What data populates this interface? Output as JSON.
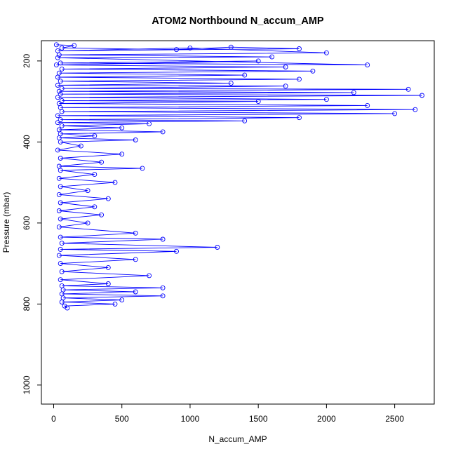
{
  "chart_data": {
    "type": "scatter",
    "title": "ATOM2 Northbound N_accum_AMP",
    "xlabel": "N_accum_AMP",
    "ylabel": "Pressure (mbar)",
    "xlim": [
      -90,
      2790
    ],
    "ylim": [
      1047,
      150
    ],
    "y_inverted": true,
    "x_ticks": [
      0,
      500,
      1000,
      1500,
      2000,
      2500
    ],
    "y_ticks": [
      200,
      400,
      600,
      800,
      1000
    ],
    "grid": false,
    "legend": "none",
    "marker": "open-circle",
    "connected_by_lines": true,
    "color": "#0000ff",
    "series": [
      {
        "points": [
          [
            20,
            160
          ],
          [
            150,
            162
          ],
          [
            60,
            168
          ],
          [
            900,
            172
          ],
          [
            1300,
            166
          ],
          [
            1800,
            170
          ],
          [
            30,
            175
          ],
          [
            1000,
            168
          ],
          [
            2000,
            180
          ],
          [
            40,
            185
          ],
          [
            1600,
            190
          ],
          [
            30,
            192
          ],
          [
            2300,
            210
          ],
          [
            50,
            205
          ],
          [
            1500,
            200
          ],
          [
            20,
            210
          ],
          [
            1700,
            215
          ],
          [
            60,
            220
          ],
          [
            1900,
            225
          ],
          [
            40,
            230
          ],
          [
            1400,
            235
          ],
          [
            30,
            240
          ],
          [
            1800,
            245
          ],
          [
            50,
            250
          ],
          [
            1300,
            255
          ],
          [
            30,
            260
          ],
          [
            1700,
            262
          ],
          [
            60,
            268
          ],
          [
            2600,
            270
          ],
          [
            40,
            275
          ],
          [
            2200,
            278
          ],
          [
            50,
            282
          ],
          [
            2700,
            285
          ],
          [
            30,
            290
          ],
          [
            2000,
            295
          ],
          [
            60,
            298
          ],
          [
            1500,
            300
          ],
          [
            40,
            305
          ],
          [
            2300,
            310
          ],
          [
            50,
            315
          ],
          [
            2650,
            320
          ],
          [
            60,
            325
          ],
          [
            2500,
            330
          ],
          [
            30,
            335
          ],
          [
            1800,
            340
          ],
          [
            50,
            345
          ],
          [
            1400,
            348
          ],
          [
            30,
            352
          ],
          [
            700,
            355
          ],
          [
            60,
            360
          ],
          [
            500,
            365
          ],
          [
            40,
            370
          ],
          [
            800,
            375
          ],
          [
            50,
            380
          ],
          [
            300,
            385
          ],
          [
            40,
            390
          ],
          [
            600,
            395
          ],
          [
            50,
            400
          ],
          [
            200,
            410
          ],
          [
            30,
            420
          ],
          [
            500,
            430
          ],
          [
            50,
            440
          ],
          [
            350,
            450
          ],
          [
            40,
            460
          ],
          [
            650,
            465
          ],
          [
            50,
            470
          ],
          [
            300,
            480
          ],
          [
            40,
            490
          ],
          [
            450,
            500
          ],
          [
            50,
            510
          ],
          [
            250,
            520
          ],
          [
            40,
            530
          ],
          [
            400,
            540
          ],
          [
            50,
            550
          ],
          [
            300,
            560
          ],
          [
            40,
            570
          ],
          [
            350,
            580
          ],
          [
            50,
            590
          ],
          [
            250,
            600
          ],
          [
            40,
            610
          ],
          [
            600,
            625
          ],
          [
            50,
            635
          ],
          [
            800,
            640
          ],
          [
            60,
            650
          ],
          [
            1200,
            660
          ],
          [
            50,
            665
          ],
          [
            900,
            670
          ],
          [
            40,
            680
          ],
          [
            600,
            690
          ],
          [
            50,
            700
          ],
          [
            400,
            710
          ],
          [
            60,
            720
          ],
          [
            700,
            730
          ],
          [
            50,
            740
          ],
          [
            400,
            750
          ],
          [
            60,
            755
          ],
          [
            800,
            760
          ],
          [
            70,
            765
          ],
          [
            600,
            770
          ],
          [
            60,
            775
          ],
          [
            800,
            780
          ],
          [
            70,
            785
          ],
          [
            500,
            790
          ],
          [
            60,
            795
          ],
          [
            450,
            800
          ],
          [
            80,
            805
          ],
          [
            100,
            810
          ]
        ]
      }
    ]
  }
}
